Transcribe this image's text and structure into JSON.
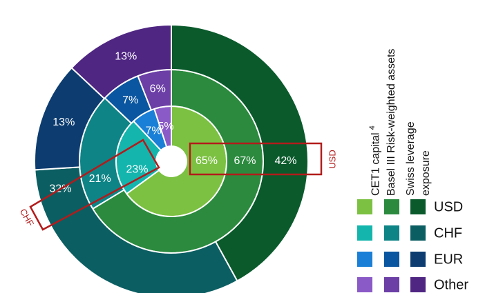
{
  "chart_data": {
    "type": "donut",
    "categories": [
      "USD",
      "CHF",
      "EUR",
      "Other"
    ],
    "series": [
      {
        "name": "CET1 capital",
        "footnote": "4",
        "colors": [
          "#7cc142",
          "#13b5ad",
          "#1a7fd6",
          "#8a5ac6"
        ],
        "values": [
          65,
          23,
          7,
          5
        ],
        "value_labels": [
          "65%",
          "23%",
          "7%",
          "5%"
        ]
      },
      {
        "name": "Basel III Risk-weighted assets",
        "colors": [
          "#2b8a3e",
          "#0e8486",
          "#0a56a0",
          "#6b3fa6"
        ],
        "values": [
          67,
          21,
          7,
          6
        ],
        "value_labels": [
          "67%",
          "21%",
          "7%",
          "6%"
        ]
      },
      {
        "name": "Swiss leverage exposure",
        "colors": [
          "#0a5a2c",
          "#0b5e62",
          "#0c3c70",
          "#4f2682"
        ],
        "values": [
          42,
          32,
          13,
          13
        ],
        "value_labels": [
          "42%",
          "32%",
          "13%",
          "13%"
        ]
      }
    ],
    "annotations": [
      "USD",
      "CHF"
    ]
  }
}
